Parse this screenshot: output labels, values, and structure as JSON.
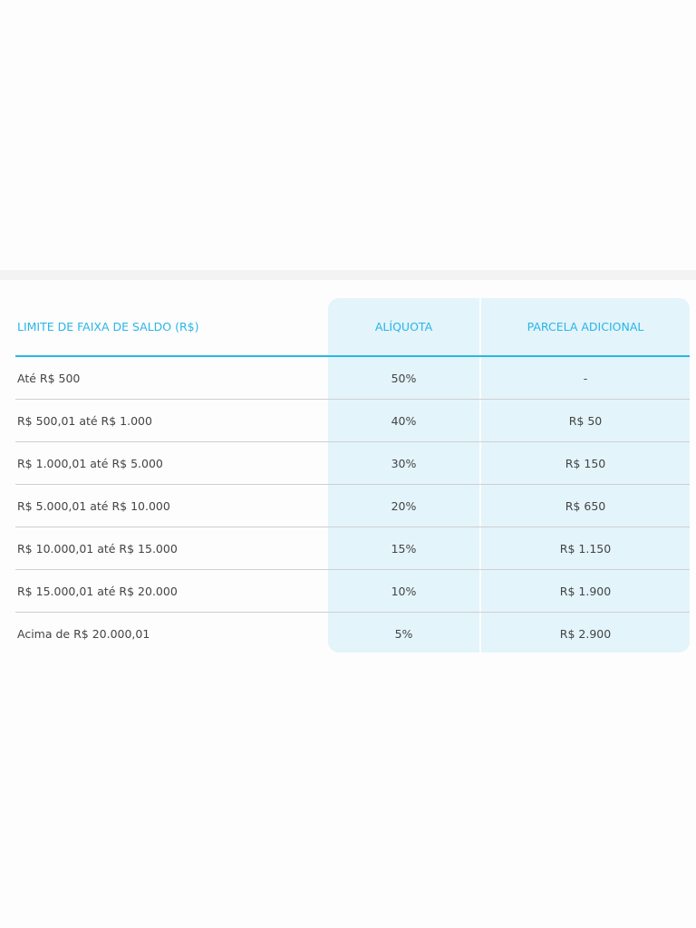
{
  "table": {
    "headers": [
      "LIMITE DE FAIXA DE SALDO (R$)",
      "ALÍQUOTA",
      "PARCELA ADICIONAL"
    ],
    "rows": [
      [
        "Até R$ 500",
        "50%",
        "-"
      ],
      [
        "R$ 500,01 até R$ 1.000",
        "40%",
        "R$ 50"
      ],
      [
        "R$ 1.000,01 até R$ 5.000",
        "30%",
        "R$ 150"
      ],
      [
        "R$ 5.000,01 até R$ 10.000",
        "20%",
        "R$ 650"
      ],
      [
        "R$ 10.000,01 até R$ 15.000",
        "15%",
        "R$ 1.150"
      ],
      [
        "R$ 15.000,01 até R$ 20.000",
        "10%",
        "R$ 1.900"
      ],
      [
        "Acima de R$ 20.000,01",
        "5%",
        "R$ 2.900"
      ]
    ]
  },
  "colors": {
    "accent": "#29b5e8",
    "highlight": "#e3f4fb"
  }
}
